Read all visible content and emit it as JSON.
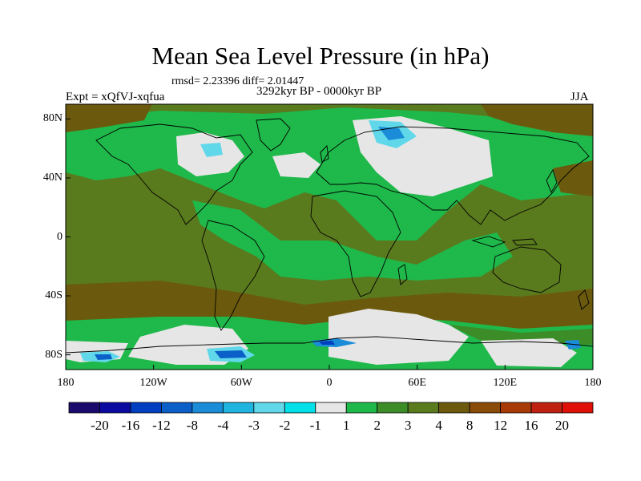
{
  "title": "Mean Sea Level Pressure (in hPa)",
  "stats": "rmsd= 2.23396 diff= 2.01447",
  "period": "3292kyr BP - 0000kyr BP",
  "experiment": "Expt = xQfVJ-xqfua",
  "season": "JJA",
  "lon_ticks": [
    "180",
    "120W",
    "60W",
    "0",
    "60E",
    "120E",
    "180"
  ],
  "lat_ticks": [
    "80N",
    "40N",
    "0",
    "40S",
    "80S"
  ],
  "lon_values": [
    -180,
    -120,
    -60,
    0,
    60,
    120,
    180
  ],
  "lat_values": [
    80,
    40,
    0,
    -40,
    -80
  ],
  "colorbar": {
    "labels": [
      "-20",
      "-16",
      "-12",
      "-8",
      "-4",
      "-3",
      "-2",
      "-1",
      "1",
      "2",
      "3",
      "4",
      "8",
      "12",
      "16",
      "20"
    ],
    "colors": [
      "#1a0a6e",
      "#0a0aa0",
      "#0040c0",
      "#0a5fc8",
      "#1a8cd8",
      "#20b4e0",
      "#60d8ea",
      "#00e0e8",
      "#e6e6e6",
      "#1fb84a",
      "#3c8c28",
      "#5a7a1e",
      "#6b5a0e",
      "#8a4a08",
      "#a83a08",
      "#c02010",
      "#e01008"
    ]
  },
  "legend_colors": {
    "c1": "#e6e6e6",
    "c2": "#1fb84a",
    "c3": "#3c8c28",
    "c4": "#5a7a1e",
    "c8": "#6b5a0e",
    "c12": "#8a4a08",
    "m2": "#60d8ea",
    "m4": "#1a8cd8",
    "m8": "#0a5fc8",
    "m12": "#0040c0"
  }
}
